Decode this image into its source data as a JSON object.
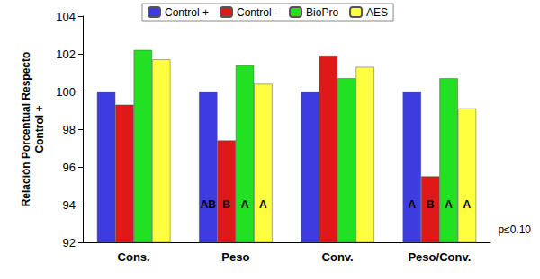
{
  "chart_data": {
    "type": "bar",
    "y_label": "Relación Porcentual Respecto Control +",
    "categories": [
      "Cons.",
      "Peso",
      "Conv.",
      "Peso/Conv."
    ],
    "series": [
      {
        "name": "Control +",
        "color": "#3c3ce0",
        "values": [
          100,
          100,
          100,
          100
        ],
        "letters": [
          null,
          "AB",
          null,
          "A"
        ]
      },
      {
        "name": "Control -",
        "color": "#e01818",
        "values": [
          99.3,
          97.4,
          101.9,
          95.5
        ],
        "letters": [
          null,
          "B",
          null,
          "B"
        ]
      },
      {
        "name": "BioPro",
        "color": "#22e022",
        "values": [
          102.2,
          101.4,
          100.7,
          100.7
        ],
        "letters": [
          null,
          "A",
          null,
          "A"
        ]
      },
      {
        "name": "AES",
        "color": "#ffff40",
        "values": [
          101.7,
          100.4,
          101.3,
          99.1
        ],
        "letters": [
          null,
          "A",
          null,
          "A"
        ]
      }
    ],
    "ylim": [
      92,
      104
    ],
    "yticks": [
      92,
      94,
      96,
      98,
      100,
      102,
      104
    ],
    "grid": false,
    "legend": "top",
    "annotations": [
      "p≤0.10"
    ]
  }
}
